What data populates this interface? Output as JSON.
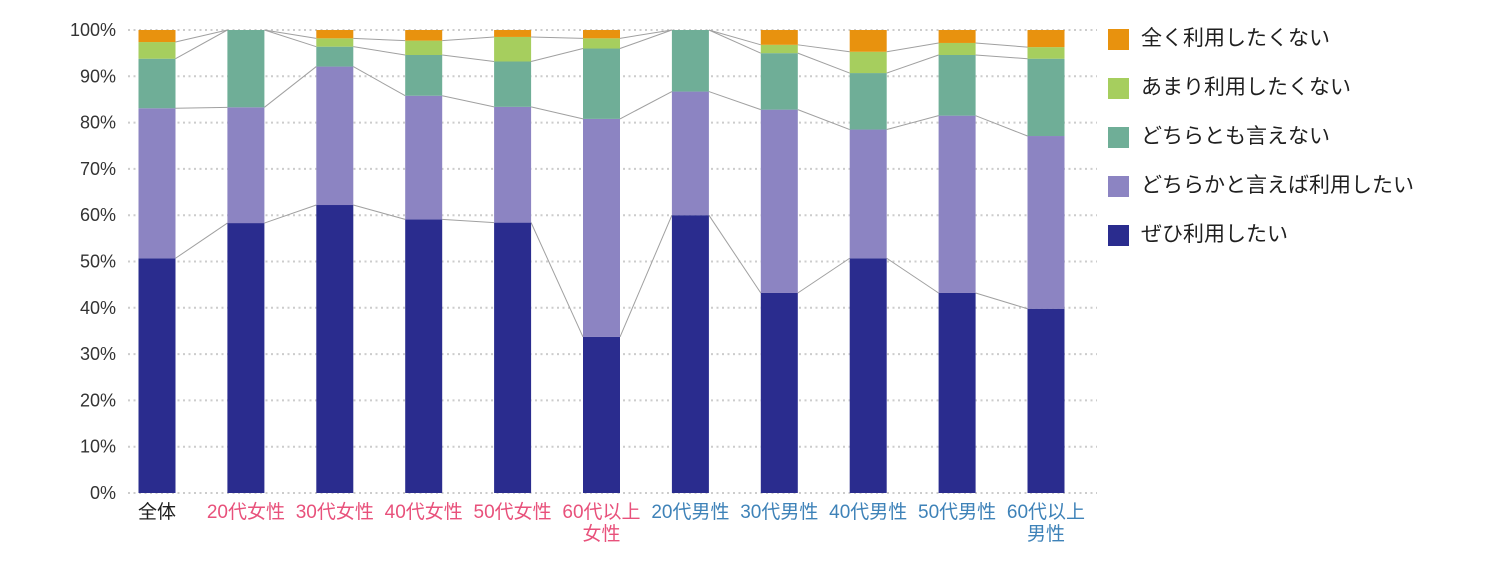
{
  "chart_data": {
    "type": "bar",
    "stacking": "percent-100",
    "title": "",
    "xlabel": "",
    "ylabel": "",
    "categories": [
      {
        "label": "全体",
        "lines": [
          "全体"
        ],
        "color": "#1f1f1f"
      },
      {
        "label": "20代女性",
        "lines": [
          "20代女性"
        ],
        "color": "#e8517b"
      },
      {
        "label": "30代女性",
        "lines": [
          "30代女性"
        ],
        "color": "#e8517b"
      },
      {
        "label": "40代女性",
        "lines": [
          "40代女性"
        ],
        "color": "#e8517b"
      },
      {
        "label": "50代女性",
        "lines": [
          "50代女性"
        ],
        "color": "#e8517b"
      },
      {
        "label": "60代以上女性",
        "lines": [
          "60代以上",
          "女性"
        ],
        "color": "#e8517b"
      },
      {
        "label": "20代男性",
        "lines": [
          "20代男性"
        ],
        "color": "#3e82b8"
      },
      {
        "label": "30代男性",
        "lines": [
          "30代男性"
        ],
        "color": "#3e82b8"
      },
      {
        "label": "40代男性",
        "lines": [
          "40代男性"
        ],
        "color": "#3e82b8"
      },
      {
        "label": "50代男性",
        "lines": [
          "50代男性"
        ],
        "color": "#3e82b8"
      },
      {
        "label": "60代以上男性",
        "lines": [
          "60代以上",
          "男性"
        ],
        "color": "#3e82b8"
      }
    ],
    "series": [
      {
        "name": "ぜひ利用したい",
        "color": "#2a2c8e",
        "values": [
          50.7,
          58.3,
          62.2,
          59.1,
          58.4,
          33.7,
          60.0,
          43.2,
          50.7,
          43.2,
          39.8
        ]
      },
      {
        "name": "どちらかと言えば利用したい",
        "color": "#8c84c2",
        "values": [
          32.4,
          25.0,
          29.9,
          26.7,
          25.0,
          47.1,
          26.7,
          39.6,
          27.8,
          38.3,
          37.3
        ]
      },
      {
        "name": "どちらとも言えない",
        "color": "#6fae97",
        "values": [
          10.7,
          16.7,
          4.3,
          8.8,
          9.8,
          15.2,
          13.3,
          12.2,
          12.2,
          13.1,
          16.7
        ]
      },
      {
        "name": "あまり利用したくない",
        "color": "#a6ce5e",
        "values": [
          3.6,
          0.0,
          1.8,
          3.1,
          5.3,
          2.2,
          0.0,
          1.8,
          4.6,
          2.6,
          2.5
        ]
      },
      {
        "name": "全く利用したくない",
        "color": "#e8920e",
        "values": [
          2.6,
          0.0,
          1.8,
          2.3,
          1.5,
          1.8,
          0.0,
          3.2,
          4.7,
          2.8,
          3.7
        ]
      }
    ],
    "legend": [
      {
        "label": "全く利用したくない",
        "color": "#e8920e"
      },
      {
        "label": "あまり利用したくない",
        "color": "#a6ce5e"
      },
      {
        "label": "どちらとも言えない",
        "color": "#6fae97"
      },
      {
        "label": "どちらかと言えば利用したい",
        "color": "#8c84c2"
      },
      {
        "label": "ぜひ利用したい",
        "color": "#2a2c8e"
      }
    ],
    "y_axis": {
      "min": 0,
      "max": 100,
      "step": 10,
      "tick_labels": [
        "0%",
        "10%",
        "20%",
        "30%",
        "40%",
        "50%",
        "60%",
        "70%",
        "80%",
        "90%",
        "100%"
      ],
      "gridlines": "dotted",
      "legend_position": "right"
    },
    "connector_lines": true
  },
  "style": {
    "background": "#ffffff",
    "gridline_color": "#cccccc",
    "connector_color": "#a0a0a0",
    "tick_label_color": "#333333"
  }
}
